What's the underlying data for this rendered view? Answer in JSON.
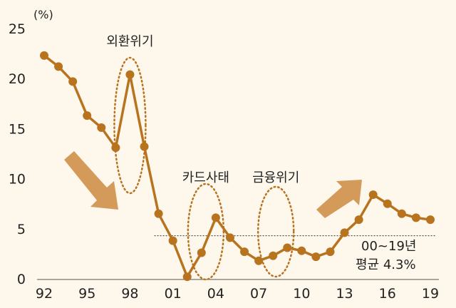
{
  "chart_data": {
    "type": "line",
    "unit": "(%)",
    "x": [
      1992,
      1993,
      1994,
      1995,
      1996,
      1997,
      1998,
      1999,
      2000,
      2001,
      2002,
      2003,
      2004,
      2005,
      2006,
      2007,
      2008,
      2009,
      2010,
      2011,
      2012,
      2013,
      2014,
      2015,
      2016,
      2017,
      2018,
      2019
    ],
    "values": [
      22.3,
      21.2,
      19.7,
      16.3,
      15.1,
      13.1,
      20.4,
      13.2,
      6.5,
      3.8,
      0.2,
      2.6,
      6.1,
      4.1,
      2.7,
      1.8,
      2.3,
      3.1,
      2.8,
      2.2,
      2.7,
      4.6,
      5.9,
      8.4,
      7.5,
      6.5,
      6.1,
      5.9
    ],
    "xticks": [
      "92",
      "95",
      "98",
      "01",
      "04",
      "07",
      "10",
      "13",
      "16",
      "19"
    ],
    "xtick_years": [
      1992,
      1995,
      1998,
      2001,
      2004,
      2007,
      2010,
      2013,
      2016,
      2019
    ],
    "yticks": [
      "0",
      "5",
      "10",
      "15",
      "20",
      "25"
    ],
    "ylim": [
      0,
      25
    ],
    "average": {
      "value": 4.3,
      "label_line1": "00~19년",
      "label_line2": "평균 4.3%",
      "from_year": 1999.7
    },
    "annotations": [
      {
        "label": "외환위기",
        "center_year": 1998
      },
      {
        "label": "카드사태",
        "center_year": 2003.3
      },
      {
        "label": "금융위기",
        "center_year": 2008.2
      }
    ],
    "colors": {
      "line": "#b8731f",
      "arrow": "#d49a5a",
      "ellipse": "#b8731f",
      "background": "#fdf7ec"
    }
  }
}
